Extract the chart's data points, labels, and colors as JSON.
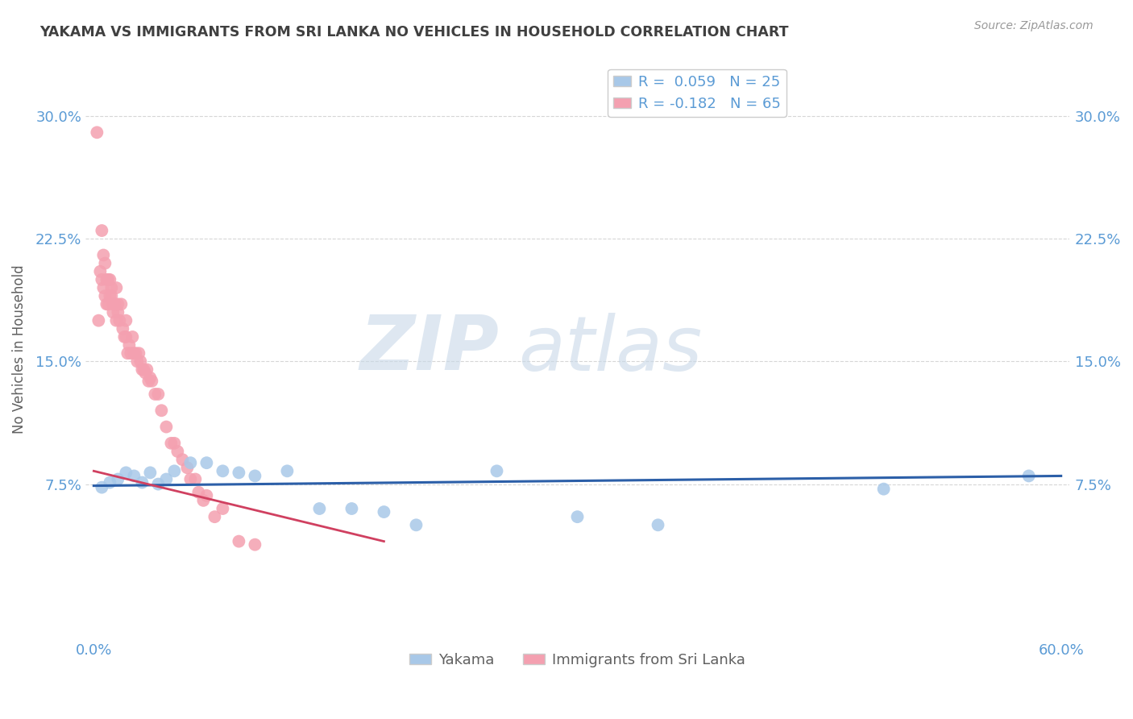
{
  "title": "YAKAMA VS IMMIGRANTS FROM SRI LANKA NO VEHICLES IN HOUSEHOLD CORRELATION CHART",
  "source": "Source: ZipAtlas.com",
  "ylabel": "No Vehicles in Household",
  "xlim": [
    -0.005,
    0.605
  ],
  "ylim": [
    -0.02,
    0.335
  ],
  "yticks": [
    0.075,
    0.15,
    0.225,
    0.3
  ],
  "yticklabels": [
    "7.5%",
    "15.0%",
    "22.5%",
    "30.0%"
  ],
  "xtick_left": "0.0%",
  "xtick_right": "60.0%",
  "watermark1": "ZIP",
  "watermark2": "atlas",
  "legend_labels": [
    "Yakama",
    "Immigrants from Sri Lanka"
  ],
  "R_yakama": 0.059,
  "N_yakama": 25,
  "R_srilanka": -0.182,
  "N_srilanka": 65,
  "yakama_color": "#a8c8e8",
  "srilanka_color": "#f4a0b0",
  "yakama_line_color": "#2c5fa8",
  "srilanka_line_color": "#d04060",
  "background_color": "#ffffff",
  "title_color": "#404040",
  "axis_color": "#5b9bd5",
  "tick_color": "#5b9bd5",
  "grid_color": "#cccccc",
  "ylabel_color": "#606060",
  "source_color": "#999999",
  "bottom_legend_color": "#606060",
  "yakama_x": [
    0.005,
    0.01,
    0.015,
    0.02,
    0.025,
    0.03,
    0.035,
    0.04,
    0.045,
    0.05,
    0.06,
    0.07,
    0.08,
    0.09,
    0.1,
    0.12,
    0.14,
    0.16,
    0.18,
    0.2,
    0.25,
    0.3,
    0.35,
    0.49,
    0.58
  ],
  "yakama_y": [
    0.073,
    0.076,
    0.078,
    0.082,
    0.08,
    0.076,
    0.082,
    0.075,
    0.078,
    0.083,
    0.088,
    0.088,
    0.083,
    0.082,
    0.08,
    0.083,
    0.06,
    0.06,
    0.058,
    0.05,
    0.083,
    0.055,
    0.05,
    0.072,
    0.08
  ],
  "srilanka_x": [
    0.002,
    0.003,
    0.004,
    0.005,
    0.005,
    0.006,
    0.006,
    0.007,
    0.007,
    0.008,
    0.008,
    0.009,
    0.009,
    0.01,
    0.01,
    0.011,
    0.011,
    0.012,
    0.012,
    0.013,
    0.013,
    0.014,
    0.014,
    0.015,
    0.015,
    0.016,
    0.017,
    0.018,
    0.019,
    0.02,
    0.02,
    0.021,
    0.022,
    0.023,
    0.024,
    0.025,
    0.026,
    0.027,
    0.028,
    0.029,
    0.03,
    0.031,
    0.032,
    0.033,
    0.034,
    0.035,
    0.036,
    0.038,
    0.04,
    0.042,
    0.045,
    0.048,
    0.05,
    0.052,
    0.055,
    0.058,
    0.06,
    0.063,
    0.065,
    0.068,
    0.07,
    0.075,
    0.08,
    0.09,
    0.1
  ],
  "srilanka_y": [
    0.29,
    0.175,
    0.205,
    0.23,
    0.2,
    0.195,
    0.215,
    0.21,
    0.19,
    0.2,
    0.185,
    0.2,
    0.185,
    0.2,
    0.19,
    0.195,
    0.19,
    0.185,
    0.18,
    0.185,
    0.185,
    0.175,
    0.195,
    0.18,
    0.185,
    0.175,
    0.185,
    0.17,
    0.165,
    0.165,
    0.175,
    0.155,
    0.16,
    0.155,
    0.165,
    0.155,
    0.155,
    0.15,
    0.155,
    0.15,
    0.145,
    0.145,
    0.143,
    0.145,
    0.138,
    0.14,
    0.138,
    0.13,
    0.13,
    0.12,
    0.11,
    0.1,
    0.1,
    0.095,
    0.09,
    0.085,
    0.078,
    0.078,
    0.07,
    0.065,
    0.068,
    0.055,
    0.06,
    0.04,
    0.038
  ],
  "trendline_x_start": 0.0,
  "trendline_x_end": 0.6,
  "yakama_trend_y_start": 0.074,
  "yakama_trend_y_end": 0.08,
  "srilanka_trend_y_start": 0.083,
  "srilanka_trend_y_end": 0.04
}
